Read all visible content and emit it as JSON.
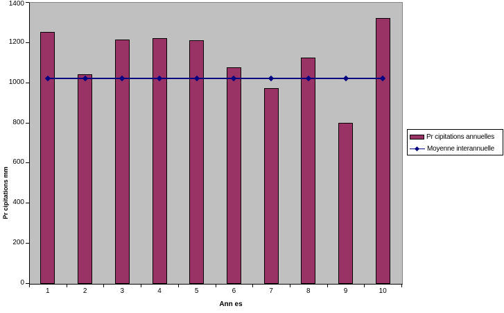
{
  "chart_data": {
    "type": "bar",
    "title": "",
    "categories": [
      "1",
      "2",
      "3",
      "4",
      "5",
      "6",
      "7",
      "8",
      "9",
      "10"
    ],
    "series": [
      {
        "name": "Pr cipitations annuelles",
        "type": "bar",
        "color": "#993366",
        "values": [
          1250,
          1040,
          1215,
          1220,
          1210,
          1075,
          970,
          1125,
          800,
          1320
        ]
      },
      {
        "name": "Moyenne interannuelle",
        "type": "line",
        "color": "#000080",
        "marker": "diamond",
        "values": [
          1020,
          1020,
          1020,
          1020,
          1020,
          1020,
          1020,
          1020,
          1020,
          1020
        ]
      }
    ],
    "xlabel": "Ann es",
    "ylabel": "Pr cipitations mm",
    "ylim": [
      0,
      1400
    ],
    "yticks": [
      0,
      200,
      400,
      600,
      800,
      1000,
      1200,
      1400
    ],
    "grid": false,
    "legend_position": "right",
    "plot_bg_color": "#c0c0c0",
    "outer_bg_color": "#ffffff"
  }
}
